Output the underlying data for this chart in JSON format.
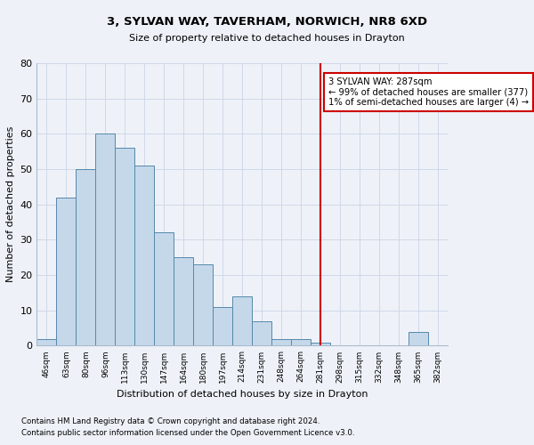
{
  "title1": "3, SYLVAN WAY, TAVERHAM, NORWICH, NR8 6XD",
  "title2": "Size of property relative to detached houses in Drayton",
  "xlabel": "Distribution of detached houses by size in Drayton",
  "ylabel": "Number of detached properties",
  "bar_values": [
    2,
    42,
    50,
    60,
    56,
    51,
    32,
    25,
    23,
    11,
    14,
    7,
    2,
    2,
    1,
    0,
    0,
    0,
    0,
    4,
    0
  ],
  "bar_labels": [
    "46sqm",
    "63sqm",
    "80sqm",
    "96sqm",
    "113sqm",
    "130sqm",
    "147sqm",
    "164sqm",
    "180sqm",
    "197sqm",
    "214sqm",
    "231sqm",
    "248sqm",
    "264sqm",
    "281sqm",
    "298sqm",
    "315sqm",
    "332sqm",
    "348sqm",
    "365sqm",
    "382sqm"
  ],
  "bar_color": "#c5d8ea",
  "bar_edge_color": "#5588aa",
  "grid_color": "#d0d8e8",
  "vline_x": 14,
  "vline_color": "#cc0000",
  "annotation_text": "3 SYLVAN WAY: 287sqm\n← 99% of detached houses are smaller (377)\n1% of semi-detached houses are larger (4) →",
  "annotation_box_color": "#ffffff",
  "annotation_edge_color": "#cc0000",
  "ylim": [
    0,
    80
  ],
  "yticks": [
    0,
    10,
    20,
    30,
    40,
    50,
    60,
    70,
    80
  ],
  "footnote1": "Contains HM Land Registry data © Crown copyright and database right 2024.",
  "footnote2": "Contains public sector information licensed under the Open Government Licence v3.0.",
  "bg_color": "#eef2f8",
  "plot_bg_color": "#eef2f8"
}
